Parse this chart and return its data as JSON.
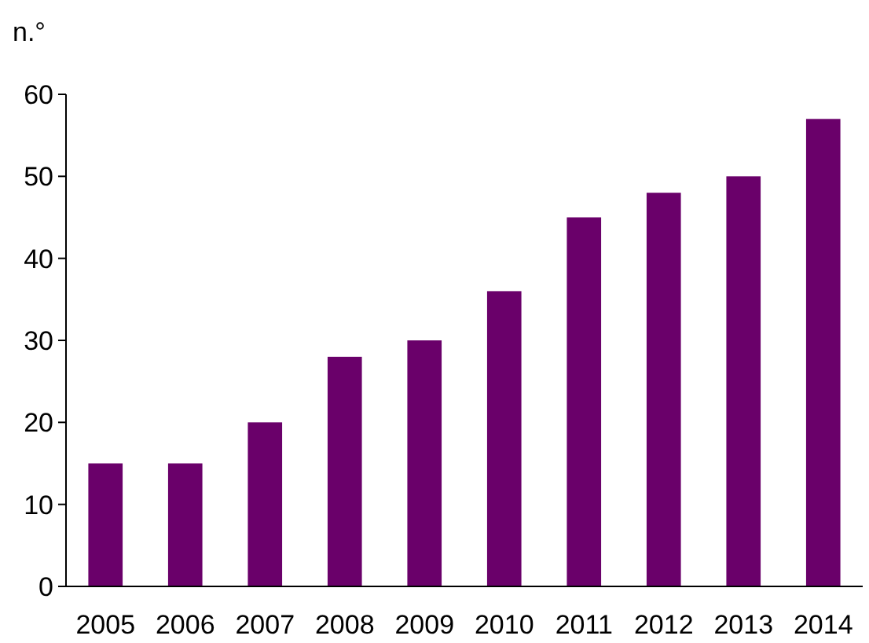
{
  "chart_data": {
    "type": "bar",
    "ylabel": "n.°",
    "categories": [
      "2005",
      "2006",
      "2007",
      "2008",
      "2009",
      "2010",
      "2011",
      "2012",
      "2013",
      "2014"
    ],
    "values": [
      15,
      15,
      20,
      28,
      30,
      36,
      45,
      48,
      50,
      57
    ],
    "color": "#6a006a",
    "ylim": [
      0,
      60
    ],
    "yticks": [
      0,
      10,
      20,
      30,
      40,
      50,
      60
    ]
  }
}
